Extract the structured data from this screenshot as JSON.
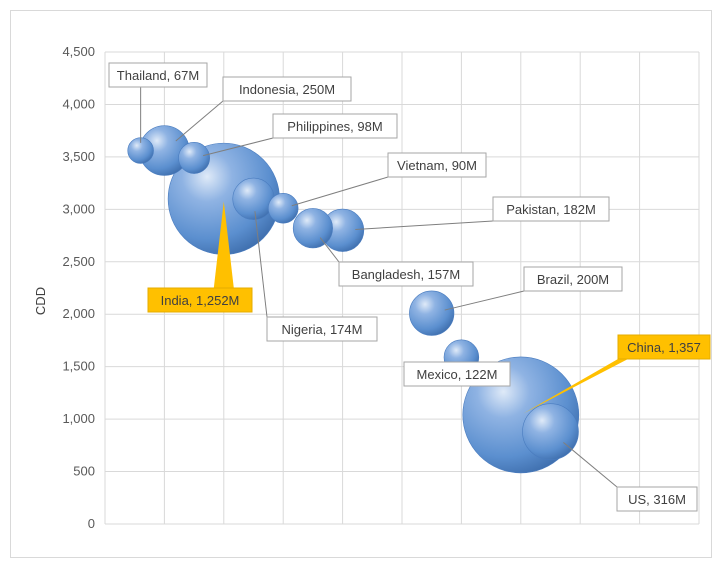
{
  "chart_data": {
    "type": "scatter",
    "subtype": "bubble",
    "title": "",
    "xlabel": "",
    "ylabel": "CDD",
    "ylim": [
      0,
      4500
    ],
    "xlim": [
      0,
      10
    ],
    "yticks": [
      0,
      500,
      1000,
      1500,
      2000,
      2500,
      3000,
      3500,
      4000,
      4500
    ],
    "ytick_labels": [
      "0",
      "500",
      "1,000",
      "1,500",
      "2,000",
      "2,500",
      "3,000",
      "3,500",
      "4,000",
      "4,500"
    ],
    "x_gridlines": [
      1,
      2,
      3,
      4,
      5,
      6,
      7,
      8,
      9,
      10
    ],
    "show_x_tick_labels": false,
    "grid": true,
    "legend": "none",
    "bubble_color": "#5b8fcf",
    "highlight_color": "#ffc000",
    "series": [
      {
        "points": [
          {
            "country": "Thailand",
            "label": "Thailand, 67M",
            "x": 0.6,
            "y": 3560,
            "population": 67
          },
          {
            "country": "Indonesia",
            "label": "Indonesia, 250M",
            "x": 1.0,
            "y": 3560,
            "population": 250
          },
          {
            "country": "Philippines",
            "label": "Philippines, 98M",
            "x": 1.5,
            "y": 3490,
            "population": 98
          },
          {
            "country": "India",
            "label": "India, 1,252M",
            "x": 2.0,
            "y": 3100,
            "population": 1252,
            "highlight": true
          },
          {
            "country": "Nigeria",
            "label": "Nigeria, 174M",
            "x": 2.5,
            "y": 3100,
            "population": 174
          },
          {
            "country": "Vietnam",
            "label": "Vietnam, 90M",
            "x": 3.0,
            "y": 3010,
            "population": 90
          },
          {
            "country": "Bangladesh",
            "label": "Bangladesh, 157M",
            "x": 3.5,
            "y": 2820,
            "population": 157
          },
          {
            "country": "Pakistan",
            "label": "Pakistan, 182M",
            "x": 4.0,
            "y": 2800,
            "population": 182
          },
          {
            "country": "Brazil",
            "label": "Brazil, 200M",
            "x": 5.5,
            "y": 2010,
            "population": 200
          },
          {
            "country": "Mexico",
            "label": "Mexico, 122M",
            "x": 6.0,
            "y": 1590,
            "population": 122
          },
          {
            "country": "China",
            "label": "China, 1,357",
            "x": 7.0,
            "y": 1040,
            "population": 1357,
            "highlight": true
          },
          {
            "country": "US",
            "label": "US, 316M",
            "x": 7.5,
            "y": 880,
            "population": 316
          }
        ]
      }
    ]
  }
}
